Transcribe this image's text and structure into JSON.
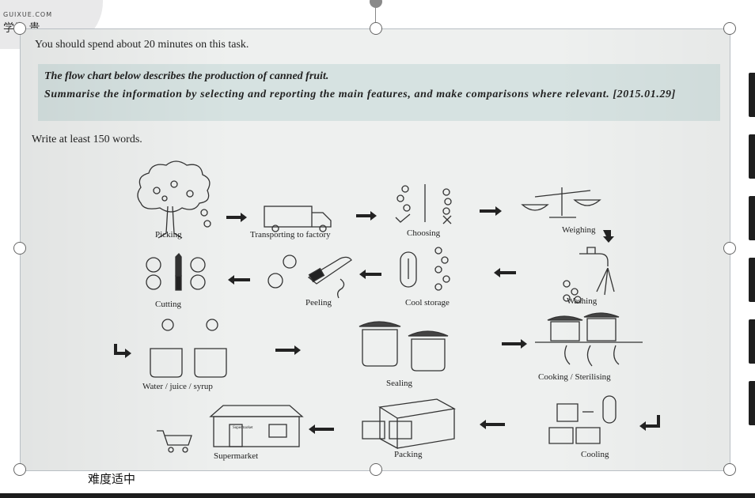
{
  "watermark": {
    "brand_en": "GUIXUE.COM",
    "brand_cn": "学为 贵"
  },
  "document": {
    "line1": "You should spend about 20 minutes on this task.",
    "prompt_line1": "The flow chart below describes the production of canned fruit.",
    "prompt_line2": "Summarise the information by selecting and reporting the main features, and make comparisons where relevant.   [2015.01.29]",
    "line3": "Write at least 150 words."
  },
  "stages": {
    "picking": "Picking",
    "transporting": "Transporting to factory",
    "choosing": "Choosing",
    "weighing": "Weighing",
    "cutting": "Cutting",
    "peeling": "Peeling",
    "cool_storage": "Cool storage",
    "washing": "Washing",
    "water": "Water / juice / syrup",
    "sealing": "Sealing",
    "cooking": "Cooking / Sterilising",
    "supermarket": "Supermarket",
    "packing": "Packing",
    "cooling": "Cooling",
    "store_sign": "Supermarket"
  },
  "caption": "难度适中",
  "icons": [
    "rotate-icon",
    "apple-tree-icon",
    "truck-icon",
    "check-icon",
    "cross-icon",
    "scale-icon",
    "knife-icon",
    "thermometer-icon",
    "tap-icon",
    "jar-icon",
    "box-icon",
    "cart-icon",
    "store-icon",
    "arrow-icon"
  ]
}
